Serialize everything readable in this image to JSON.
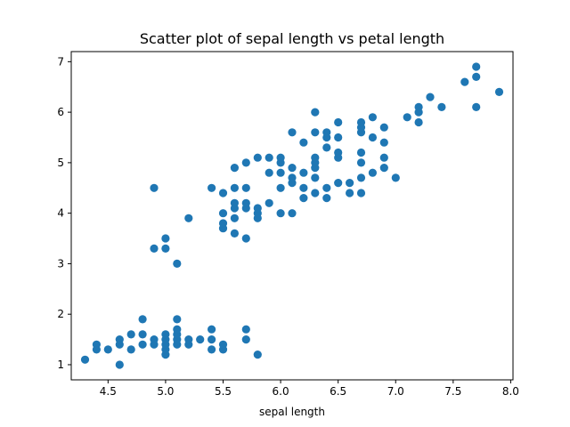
{
  "chart_data": {
    "type": "scatter",
    "title": "Scatter plot of sepal length vs petal length",
    "xlabel": "sepal length",
    "ylabel": "",
    "xlim": [
      4.18,
      8.02
    ],
    "ylim": [
      0.7,
      7.2
    ],
    "xticks": [
      "4.5",
      "5.0",
      "5.5",
      "6.0",
      "6.5",
      "7.0",
      "7.5",
      "8.0"
    ],
    "yticks": [
      "1",
      "2",
      "3",
      "4",
      "5",
      "6",
      "7"
    ],
    "marker_color": "#1f77b4",
    "grid": false,
    "legend": "none",
    "points": [
      [
        4.3,
        1.1
      ],
      [
        4.4,
        1.3
      ],
      [
        4.4,
        1.4
      ],
      [
        4.5,
        1.3
      ],
      [
        4.6,
        1.0
      ],
      [
        4.6,
        1.4
      ],
      [
        4.6,
        1.5
      ],
      [
        4.7,
        1.3
      ],
      [
        4.7,
        1.6
      ],
      [
        4.8,
        1.4
      ],
      [
        4.8,
        1.6
      ],
      [
        4.8,
        1.9
      ],
      [
        4.9,
        1.4
      ],
      [
        4.9,
        1.5
      ],
      [
        5.0,
        1.2
      ],
      [
        5.0,
        1.3
      ],
      [
        5.0,
        1.4
      ],
      [
        5.0,
        1.5
      ],
      [
        5.0,
        1.6
      ],
      [
        5.1,
        1.4
      ],
      [
        5.1,
        1.5
      ],
      [
        5.1,
        1.6
      ],
      [
        5.1,
        1.7
      ],
      [
        5.1,
        1.9
      ],
      [
        5.2,
        1.4
      ],
      [
        5.2,
        1.5
      ],
      [
        5.3,
        1.5
      ],
      [
        5.4,
        1.3
      ],
      [
        5.4,
        1.5
      ],
      [
        5.4,
        1.7
      ],
      [
        5.5,
        1.3
      ],
      [
        5.5,
        1.4
      ],
      [
        5.7,
        1.5
      ],
      [
        5.7,
        1.7
      ],
      [
        5.8,
        1.2
      ],
      [
        4.9,
        4.5
      ],
      [
        4.9,
        3.3
      ],
      [
        5.0,
        3.3
      ],
      [
        5.0,
        3.5
      ],
      [
        5.1,
        3.0
      ],
      [
        5.2,
        3.9
      ],
      [
        5.4,
        4.5
      ],
      [
        5.5,
        3.7
      ],
      [
        5.5,
        3.8
      ],
      [
        5.5,
        4.0
      ],
      [
        5.5,
        4.4
      ],
      [
        5.6,
        3.6
      ],
      [
        5.6,
        3.9
      ],
      [
        5.6,
        4.1
      ],
      [
        5.6,
        4.2
      ],
      [
        5.6,
        4.5
      ],
      [
        5.6,
        4.9
      ],
      [
        5.7,
        3.5
      ],
      [
        5.7,
        4.1
      ],
      [
        5.7,
        4.2
      ],
      [
        5.7,
        4.5
      ],
      [
        5.7,
        5.0
      ],
      [
        5.8,
        3.9
      ],
      [
        5.8,
        4.0
      ],
      [
        5.8,
        4.1
      ],
      [
        5.8,
        5.1
      ],
      [
        5.9,
        4.2
      ],
      [
        5.9,
        4.8
      ],
      [
        5.9,
        5.1
      ],
      [
        6.0,
        4.0
      ],
      [
        6.0,
        4.5
      ],
      [
        6.0,
        4.8
      ],
      [
        6.0,
        5.0
      ],
      [
        6.0,
        5.1
      ],
      [
        6.1,
        4.0
      ],
      [
        6.1,
        4.6
      ],
      [
        6.1,
        4.7
      ],
      [
        6.1,
        4.9
      ],
      [
        6.1,
        5.6
      ],
      [
        6.2,
        4.3
      ],
      [
        6.2,
        4.5
      ],
      [
        6.2,
        4.8
      ],
      [
        6.2,
        5.4
      ],
      [
        6.3,
        4.4
      ],
      [
        6.3,
        4.7
      ],
      [
        6.3,
        4.9
      ],
      [
        6.3,
        5.0
      ],
      [
        6.3,
        5.1
      ],
      [
        6.3,
        5.6
      ],
      [
        6.3,
        6.0
      ],
      [
        6.4,
        4.3
      ],
      [
        6.4,
        4.5
      ],
      [
        6.4,
        5.3
      ],
      [
        6.4,
        5.5
      ],
      [
        6.4,
        5.6
      ],
      [
        6.5,
        4.6
      ],
      [
        6.5,
        5.1
      ],
      [
        6.5,
        5.2
      ],
      [
        6.5,
        5.5
      ],
      [
        6.5,
        5.8
      ],
      [
        6.6,
        4.4
      ],
      [
        6.6,
        4.6
      ],
      [
        6.7,
        4.4
      ],
      [
        6.7,
        4.7
      ],
      [
        6.7,
        5.0
      ],
      [
        6.7,
        5.2
      ],
      [
        6.7,
        5.6
      ],
      [
        6.7,
        5.7
      ],
      [
        6.7,
        5.8
      ],
      [
        6.8,
        4.8
      ],
      [
        6.8,
        5.5
      ],
      [
        6.8,
        5.9
      ],
      [
        6.9,
        4.9
      ],
      [
        6.9,
        5.1
      ],
      [
        6.9,
        5.4
      ],
      [
        6.9,
        5.7
      ],
      [
        7.0,
        4.7
      ],
      [
        7.1,
        5.9
      ],
      [
        7.2,
        5.8
      ],
      [
        7.2,
        6.0
      ],
      [
        7.2,
        6.1
      ],
      [
        7.3,
        6.3
      ],
      [
        7.4,
        6.1
      ],
      [
        7.6,
        6.6
      ],
      [
        7.7,
        6.1
      ],
      [
        7.7,
        6.7
      ],
      [
        7.7,
        6.9
      ],
      [
        7.9,
        6.4
      ]
    ]
  }
}
